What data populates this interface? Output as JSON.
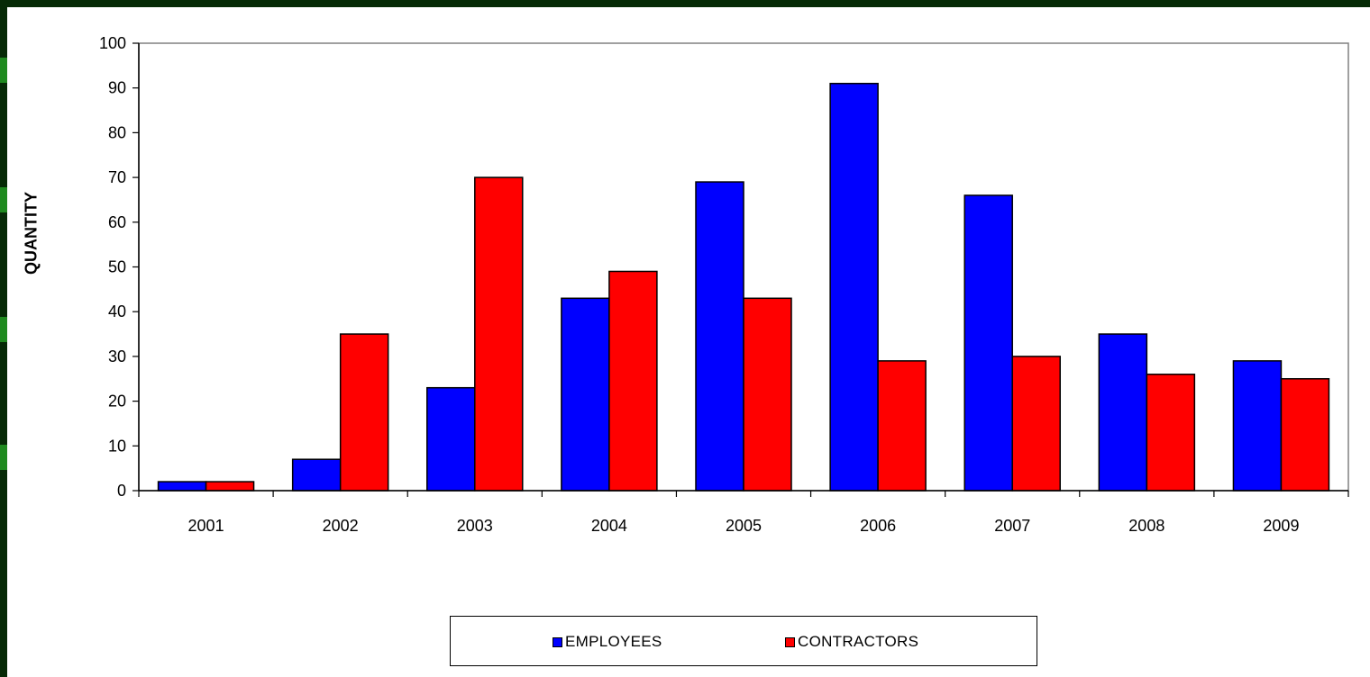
{
  "chart_data": {
    "type": "bar",
    "title": "",
    "xlabel": "",
    "ylabel": "QUANTITY",
    "ylim": [
      0,
      100
    ],
    "yticks": [
      0,
      10,
      20,
      30,
      40,
      50,
      60,
      70,
      80,
      90,
      100
    ],
    "categories": [
      "2001",
      "2002",
      "2003",
      "2004",
      "2005",
      "2006",
      "2007",
      "2008",
      "2009"
    ],
    "series": [
      {
        "name": "EMPLOYEES",
        "color": "#0000ff",
        "values": [
          2,
          7,
          23,
          43,
          69,
          91,
          66,
          35,
          29
        ]
      },
      {
        "name": "CONTRACTORS",
        "color": "#ff0000",
        "values": [
          2,
          35,
          70,
          49,
          43,
          29,
          30,
          26,
          25
        ]
      }
    ],
    "grid": false,
    "legend": "bottom"
  }
}
